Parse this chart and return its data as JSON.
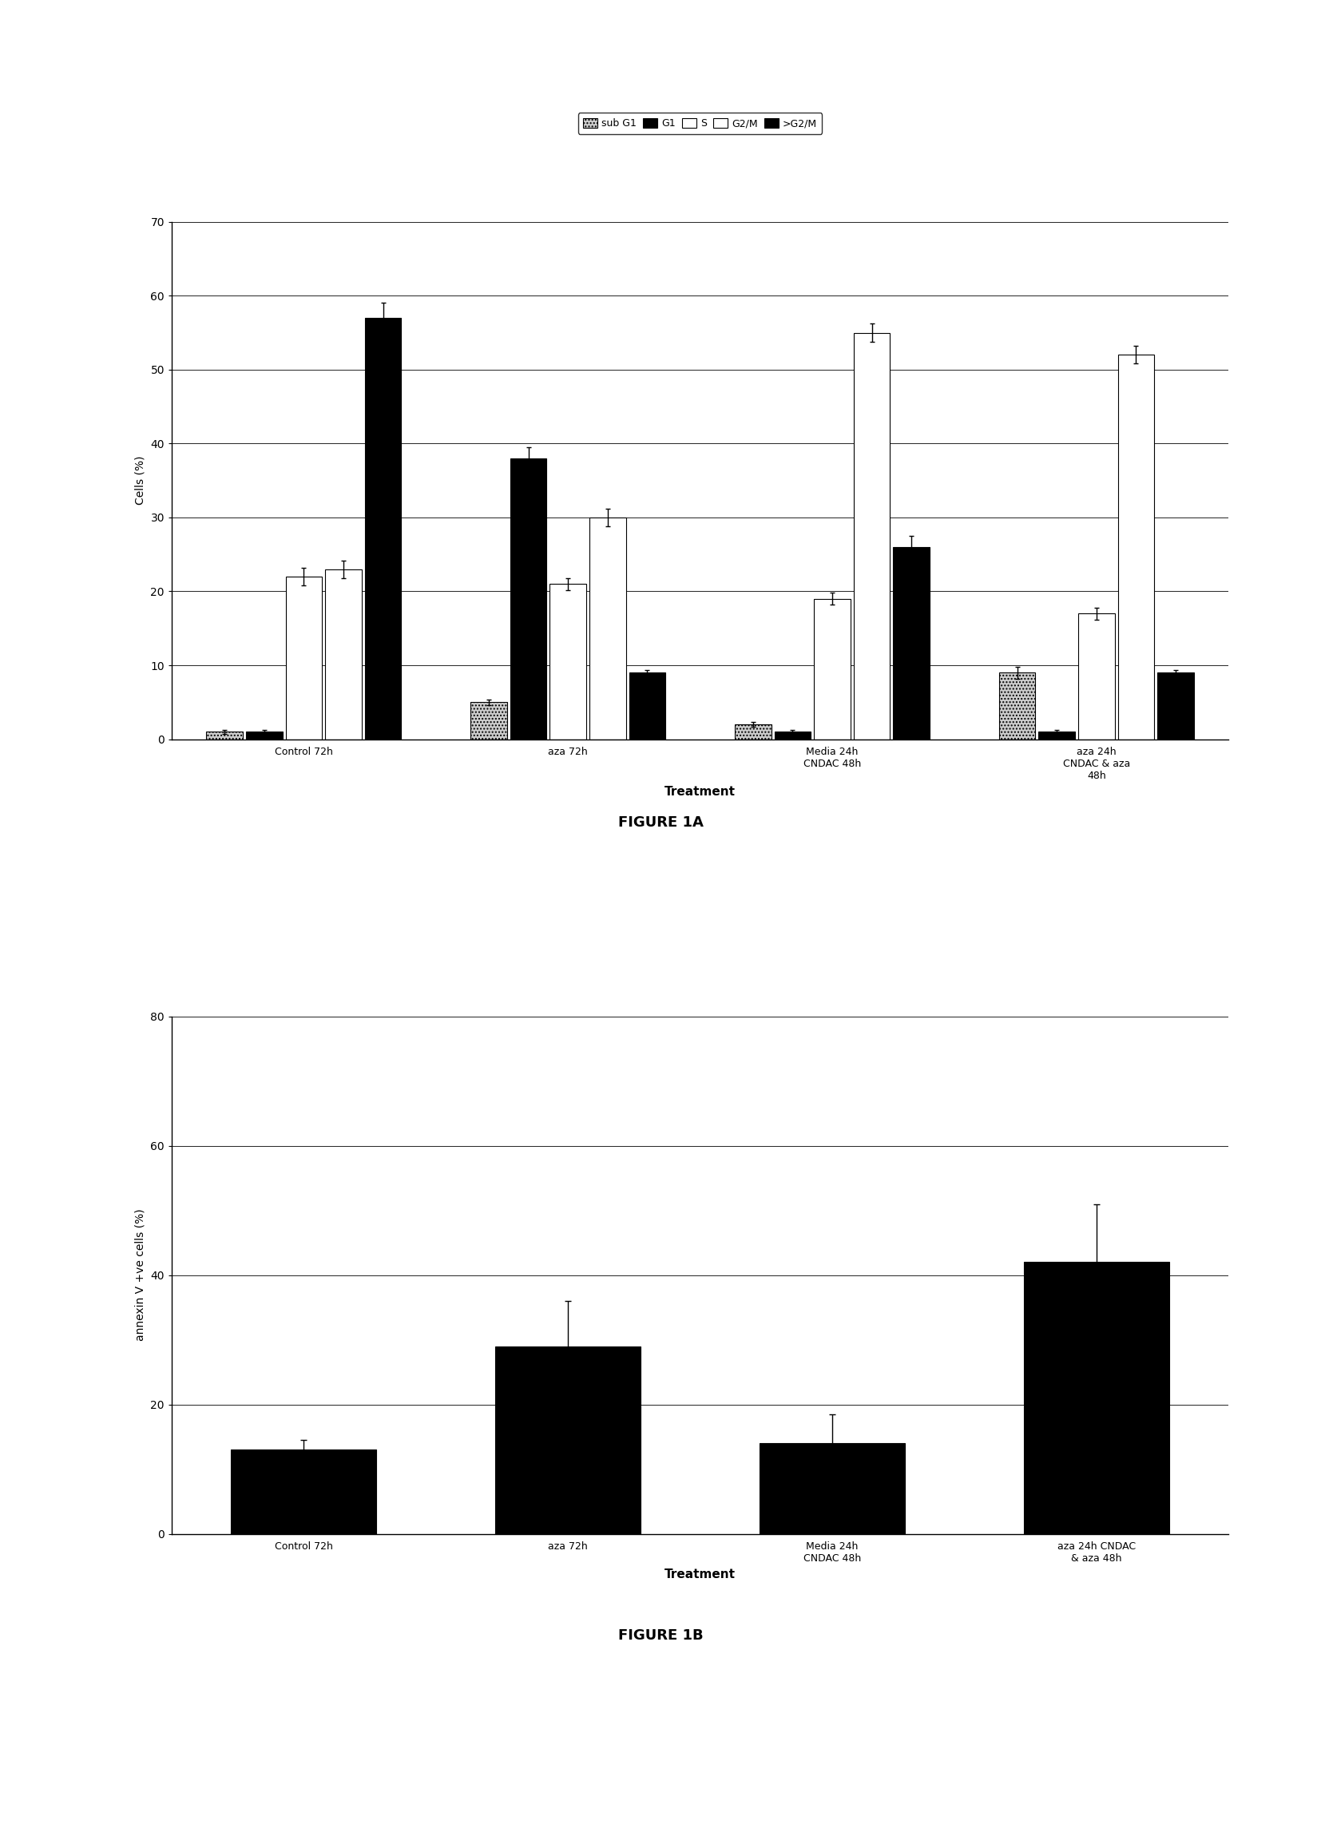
{
  "fig1a": {
    "xlabel": "Treatment",
    "ylabel": "Cells (%)",
    "ylim": [
      0,
      70
    ],
    "yticks": [
      0,
      10,
      20,
      30,
      40,
      50,
      60,
      70
    ],
    "categories": [
      "Control 72h",
      "aza 72h",
      "Media 24h\nCNDAC 48h",
      "aza 24h\nCNDAC & aza\n48h"
    ],
    "series_order": [
      "sub G1",
      "G1",
      "S",
      "G2/M",
      ">G2/M"
    ],
    "series": {
      "sub G1": {
        "values": [
          1,
          5,
          2,
          9
        ],
        "errors": [
          0.3,
          0.4,
          0.3,
          0.8
        ]
      },
      "G1": {
        "values": [
          1,
          38,
          1,
          1
        ],
        "errors": [
          0.2,
          1.5,
          0.2,
          0.2
        ]
      },
      "S": {
        "values": [
          22,
          21,
          19,
          17
        ],
        "errors": [
          1.2,
          0.8,
          0.8,
          0.8
        ]
      },
      "G2/M": {
        "values": [
          23,
          30,
          55,
          52
        ],
        "errors": [
          1.2,
          1.2,
          1.2,
          1.2
        ]
      },
      ">G2/M": {
        "values": [
          57,
          9,
          26,
          9
        ],
        "errors": [
          2.0,
          0.4,
          1.5,
          0.4
        ]
      }
    },
    "figure_label": "FIGURE 1A"
  },
  "fig1b": {
    "xlabel": "Treatment",
    "ylabel": "annexin V +ve cells (%)",
    "ylim": [
      0,
      80
    ],
    "yticks": [
      0,
      20,
      40,
      60,
      80
    ],
    "categories": [
      "Control 72h",
      "aza 72h",
      "Media 24h\nCNDAC 48h",
      "aza 24h CNDAC\n& aza 48h"
    ],
    "values": [
      13,
      29,
      14,
      42
    ],
    "errors": [
      1.5,
      7.0,
      4.5,
      9.0
    ],
    "figure_label": "FIGURE 1B"
  },
  "series_styles": {
    "sub G1": {
      "color": "#cccccc",
      "edgecolor": "#000000",
      "hatch": "...."
    },
    "G1": {
      "color": "#000000",
      "edgecolor": "#000000",
      "hatch": ""
    },
    "S": {
      "color": "#ffffff",
      "edgecolor": "#000000",
      "hatch": ""
    },
    "G2/M": {
      "color": "#ffffff",
      "edgecolor": "#000000",
      "hatch": ""
    },
    ">G2/M": {
      "color": "#000000",
      "edgecolor": "#000000",
      "hatch": ""
    }
  }
}
